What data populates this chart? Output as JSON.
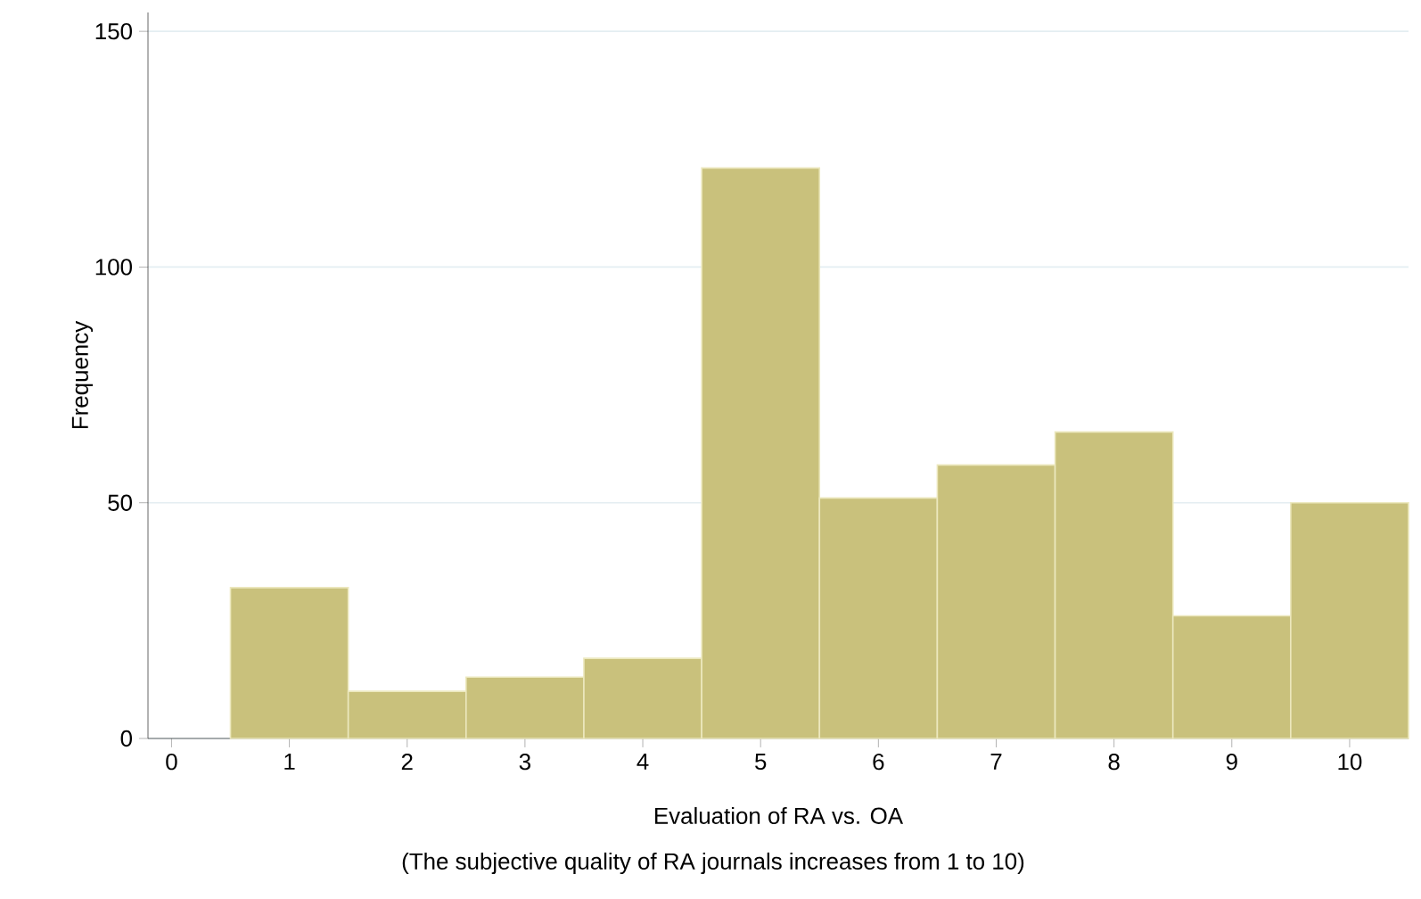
{
  "chart_data": {
    "type": "histogram",
    "xlabel": "Evaluation of RA vs. OA",
    "ylabel": "Frequency",
    "annotations": [
      "(The subjective quality of RA journals increases from 1 to 10)"
    ],
    "bins": [
      0.5,
      1.5,
      2.5,
      3.5,
      4.5,
      5.5,
      6.5,
      7.5,
      8.5,
      9.5,
      10.5
    ],
    "values": [
      32,
      10,
      13,
      17,
      121,
      51,
      58,
      65,
      26,
      50
    ],
    "color": "#c9c17c",
    "xlim": [
      -0.2,
      10.5
    ],
    "ylim": [
      0,
      154
    ],
    "xticks": [
      0,
      1,
      2,
      3,
      4,
      5,
      6,
      7,
      8,
      9,
      10
    ],
    "yticks": [
      0,
      50,
      100,
      150
    ],
    "grid": "y"
  }
}
